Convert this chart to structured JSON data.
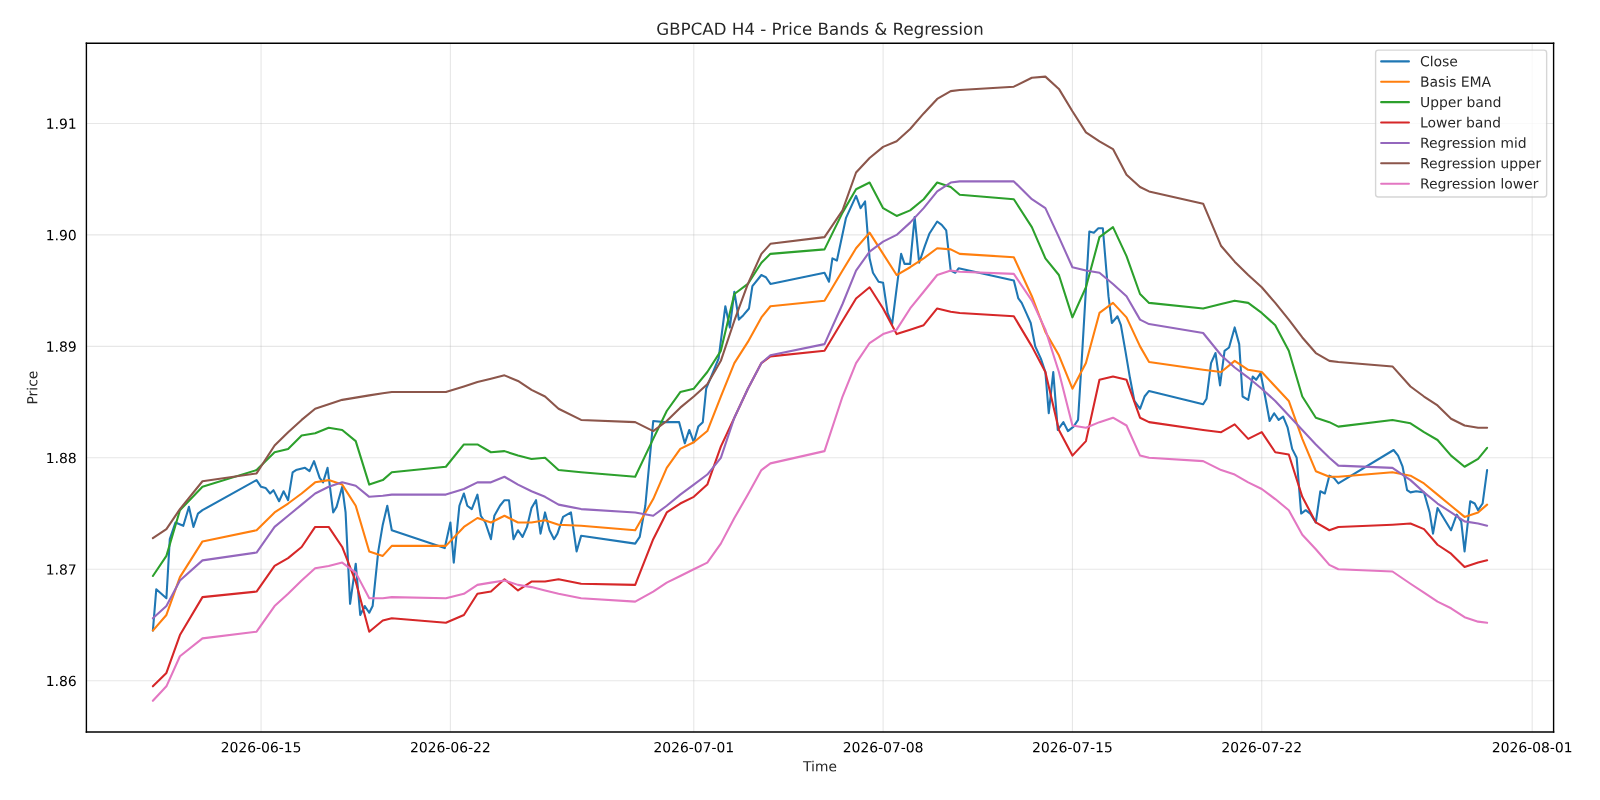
{
  "chart_data": {
    "type": "line",
    "title": "GBPCAD H4 - Price Bands & Regression",
    "xlabel": "Time",
    "ylabel": "Price",
    "xlim": [
      "2026-06-08T13:00",
      "2026-08-01T19:00"
    ],
    "xticks": [
      "2026-06-15",
      "2026-06-22",
      "2026-07-01",
      "2026-07-08",
      "2026-07-15",
      "2026-07-22",
      "2026-08-01"
    ],
    "ylim": [
      1.8554,
      1.9172
    ],
    "yticks": [
      {
        "value": 1.86,
        "label": "1.86"
      },
      {
        "value": 1.87,
        "label": "1.87"
      },
      {
        "value": 1.88,
        "label": "1.88"
      },
      {
        "value": 1.89,
        "label": "1.89"
      },
      {
        "value": 1.9,
        "label": "1.90"
      },
      {
        "value": 1.91,
        "label": "1.91"
      }
    ],
    "grid": true,
    "legend": "top right",
    "line_style": "solid",
    "marker": "none",
    "x": [
      "2026-06-11T00:00",
      "2026-06-11T12:00",
      "2026-06-12T00:00",
      "2026-06-12T20:00",
      "2026-06-14T20:00",
      "2026-06-15T12:00",
      "2026-06-16T00:00",
      "2026-06-16T12:00",
      "2026-06-17T00:00",
      "2026-06-17T12:00",
      "2026-06-18T00:00",
      "2026-06-18T12:00",
      "2026-06-19T00:00",
      "2026-06-19T12:00",
      "2026-06-19T20:00",
      "2026-06-21T20:00",
      "2026-06-22T12:00",
      "2026-06-23T00:00",
      "2026-06-23T12:00",
      "2026-06-24T00:00",
      "2026-06-24T12:00",
      "2026-06-25T00:00",
      "2026-06-25T12:00",
      "2026-06-26T00:00",
      "2026-06-26T20:00",
      "2026-06-28T20:00",
      "2026-06-29T12:00",
      "2026-06-30T00:00",
      "2026-06-30T12:00",
      "2026-07-01T00:00",
      "2026-07-01T12:00",
      "2026-07-02T00:00",
      "2026-07-02T12:00",
      "2026-07-03T00:00",
      "2026-07-03T12:00",
      "2026-07-03T20:00",
      "2026-07-05T20:00",
      "2026-07-06T12:00",
      "2026-07-07T00:00",
      "2026-07-07T12:00",
      "2026-07-08T00:00",
      "2026-07-08T12:00",
      "2026-07-09T00:00",
      "2026-07-09T12:00",
      "2026-07-10T00:00",
      "2026-07-10T12:00",
      "2026-07-10T20:00",
      "2026-07-12T20:00",
      "2026-07-13T12:00",
      "2026-07-14T00:00",
      "2026-07-14T12:00",
      "2026-07-15T00:00",
      "2026-07-15T12:00",
      "2026-07-16T00:00",
      "2026-07-16T12:00",
      "2026-07-17T00:00",
      "2026-07-17T12:00",
      "2026-07-17T20:00",
      "2026-07-19T20:00",
      "2026-07-20T12:00",
      "2026-07-21T00:00",
      "2026-07-21T12:00",
      "2026-07-22T00:00",
      "2026-07-22T12:00",
      "2026-07-23T00:00",
      "2026-07-23T12:00",
      "2026-07-24T00:00",
      "2026-07-24T12:00",
      "2026-07-24T20:00",
      "2026-07-26T20:00",
      "2026-07-27T12:00",
      "2026-07-28T00:00",
      "2026-07-28T12:00",
      "2026-07-29T00:00",
      "2026-07-29T12:00",
      "2026-07-30T00:00",
      "2026-07-30T08:00"
    ],
    "series": [
      {
        "name": "Close",
        "color": "#1f77b4",
        "x": [
          "2026-06-11T00:00",
          "2026-06-11T03:00",
          "2026-06-11T12:00",
          "2026-06-11T15:00",
          "2026-06-11T20:00",
          "2026-06-12T03:00",
          "2026-06-12T08:00",
          "2026-06-12T12:00",
          "2026-06-12T16:00",
          "2026-06-12T20:00",
          "2026-06-14T20:00",
          "2026-06-15T00:00",
          "2026-06-15T04:00",
          "2026-06-15T08:00",
          "2026-06-15T11:00",
          "2026-06-15T16:00",
          "2026-06-15T20:00",
          "2026-06-16T00:00",
          "2026-06-16T04:00",
          "2026-06-16T07:00",
          "2026-06-16T15:00",
          "2026-06-16T19:00",
          "2026-06-16T23:00",
          "2026-06-17T04:00",
          "2026-06-17T07:00",
          "2026-06-17T11:00",
          "2026-06-17T16:00",
          "2026-06-17T19:00",
          "2026-06-18T00:00",
          "2026-06-18T03:00",
          "2026-06-18T07:00",
          "2026-06-18T12:00",
          "2026-06-18T16:00",
          "2026-06-18T20:00",
          "2026-06-19T00:00",
          "2026-06-19T03:00",
          "2026-06-19T08:00",
          "2026-06-19T12:00",
          "2026-06-19T16:00",
          "2026-06-19T20:00",
          "2026-06-21T19:00",
          "2026-06-22T00:00",
          "2026-06-22T03:00",
          "2026-06-22T08:00",
          "2026-06-22T12:00",
          "2026-06-22T15:00",
          "2026-06-22T19:00",
          "2026-06-23T00:00",
          "2026-06-23T03:00",
          "2026-06-23T07:00",
          "2026-06-23T12:00",
          "2026-06-23T15:00",
          "2026-06-23T20:00",
          "2026-06-24T00:00",
          "2026-06-24T04:00",
          "2026-06-24T08:00",
          "2026-06-24T12:00",
          "2026-06-24T16:00",
          "2026-06-24T20:00",
          "2026-06-25T00:00",
          "2026-06-25T04:00",
          "2026-06-25T08:00",
          "2026-06-25T12:00",
          "2026-06-25T16:00",
          "2026-06-25T20:00",
          "2026-06-25T23:00",
          "2026-06-26T04:00",
          "2026-06-26T11:00",
          "2026-06-26T16:00",
          "2026-06-26T20:00",
          "2026-06-28T20:00",
          "2026-06-29T00:00",
          "2026-06-29T05:00",
          "2026-06-29T12:00",
          "2026-06-29T22:00",
          "2026-06-30T11:00",
          "2026-06-30T16:00",
          "2026-06-30T20:00",
          "2026-07-01T00:00",
          "2026-07-01T04:00",
          "2026-07-01T08:00",
          "2026-07-01T11:00",
          "2026-07-01T22:00",
          "2026-07-02T04:00",
          "2026-07-02T08:00",
          "2026-07-02T12:00",
          "2026-07-02T16:00",
          "2026-07-02T20:00",
          "2026-07-03T01:00",
          "2026-07-03T04:00",
          "2026-07-03T12:00",
          "2026-07-03T16:00",
          "2026-07-03T20:00",
          "2026-07-05T20:00",
          "2026-07-06T00:00",
          "2026-07-06T03:00",
          "2026-07-06T07:00",
          "2026-07-06T15:00",
          "2026-07-07T00:00",
          "2026-07-07T04:00",
          "2026-07-07T08:00",
          "2026-07-07T12:00",
          "2026-07-07T15:00",
          "2026-07-07T20:00",
          "2026-07-08T00:00",
          "2026-07-08T04:00",
          "2026-07-08T08:00",
          "2026-07-08T12:00",
          "2026-07-08T16:00",
          "2026-07-08T19:00",
          "2026-07-09T00:00",
          "2026-07-09T04:00",
          "2026-07-09T08:00",
          "2026-07-09T13:00",
          "2026-07-09T17:00",
          "2026-07-10T00:00",
          "2026-07-10T04:00",
          "2026-07-10T08:00",
          "2026-07-10T12:00",
          "2026-07-10T16:00",
          "2026-07-10T19:00",
          "2026-07-12T20:00",
          "2026-07-13T00:00",
          "2026-07-13T03:00",
          "2026-07-13T07:00",
          "2026-07-13T11:00",
          "2026-07-13T15:00",
          "2026-07-13T20:00",
          "2026-07-14T00:00",
          "2026-07-14T03:00",
          "2026-07-14T07:00",
          "2026-07-14T11:00",
          "2026-07-14T16:00",
          "2026-07-14T20:00",
          "2026-07-15T01:00",
          "2026-07-15T05:00",
          "2026-07-15T09:00",
          "2026-07-15T15:00",
          "2026-07-15T19:00",
          "2026-07-15T23:00",
          "2026-07-16T03:00",
          "2026-07-16T08:00",
          "2026-07-16T11:00",
          "2026-07-16T16:00",
          "2026-07-16T19:00",
          "2026-07-16T23:00",
          "2026-07-17T03:00",
          "2026-07-17T07:00",
          "2026-07-17T12:00",
          "2026-07-17T16:00",
          "2026-07-17T20:00",
          "2026-07-19T20:00",
          "2026-07-19T23:00",
          "2026-07-20T03:00",
          "2026-07-20T07:00",
          "2026-07-20T11:00",
          "2026-07-20T15:00",
          "2026-07-20T19:00",
          "2026-07-21T00:00",
          "2026-07-21T04:00",
          "2026-07-21T07:00",
          "2026-07-21T12:00",
          "2026-07-21T16:00",
          "2026-07-21T19:00",
          "2026-07-21T23:00",
          "2026-07-22T03:00",
          "2026-07-22T07:00",
          "2026-07-22T11:00",
          "2026-07-22T15:00",
          "2026-07-22T19:00",
          "2026-07-22T23:00",
          "2026-07-23T03:00",
          "2026-07-23T07:00",
          "2026-07-23T11:00",
          "2026-07-23T15:00",
          "2026-07-23T19:00",
          "2026-07-24T00:00",
          "2026-07-24T04:00",
          "2026-07-24T08:00",
          "2026-07-24T12:00",
          "2026-07-24T16:00",
          "2026-07-24T20:00",
          "2026-07-26T21:00",
          "2026-07-27T01:00",
          "2026-07-27T05:00",
          "2026-07-27T09:00",
          "2026-07-27T12:00",
          "2026-07-27T17:00",
          "2026-07-28T00:00",
          "2026-07-28T05:00",
          "2026-07-28T08:00",
          "2026-07-28T12:00",
          "2026-07-29T00:00",
          "2026-07-29T05:00",
          "2026-07-29T09:00",
          "2026-07-29T12:00",
          "2026-07-29T17:00",
          "2026-07-29T21:00",
          "2026-07-30T00:00",
          "2026-07-30T04:00",
          "2026-07-30T08:00"
        ],
        "values": [
          1.8645,
          1.8682,
          1.8674,
          1.8727,
          1.8742,
          1.8739,
          1.8756,
          1.8738,
          1.875,
          1.8753,
          1.878,
          1.8774,
          1.8773,
          1.8768,
          1.8771,
          1.8761,
          1.877,
          1.8762,
          1.8787,
          1.8789,
          1.8791,
          1.8788,
          1.8797,
          1.8782,
          1.8778,
          1.8791,
          1.8751,
          1.8756,
          1.8774,
          1.8751,
          1.8669,
          1.8705,
          1.8659,
          1.8667,
          1.8661,
          1.8667,
          1.8716,
          1.874,
          1.8757,
          1.8735,
          1.8719,
          1.8742,
          1.8706,
          1.8757,
          1.8768,
          1.8757,
          1.8754,
          1.8767,
          1.8748,
          1.8742,
          1.8727,
          1.8748,
          1.8757,
          1.8762,
          1.8762,
          1.8727,
          1.8735,
          1.8729,
          1.8738,
          1.8755,
          1.8762,
          1.8732,
          1.8751,
          1.8735,
          1.8727,
          1.8732,
          1.8747,
          1.8751,
          1.8716,
          1.873,
          1.8723,
          1.8729,
          1.8757,
          1.8833,
          1.8832,
          1.8832,
          1.8813,
          1.8825,
          1.8814,
          1.8828,
          1.8832,
          1.8862,
          1.8889,
          1.8936,
          1.8917,
          1.8949,
          1.8924,
          1.8928,
          1.8934,
          1.8954,
          1.8964,
          1.8962,
          1.8956,
          1.8966,
          1.8958,
          1.8979,
          1.8977,
          1.9015,
          1.9035,
          1.9024,
          1.903,
          1.8979,
          1.8966,
          1.8958,
          1.8957,
          1.893,
          1.892,
          1.8952,
          1.8983,
          1.8974,
          1.8974,
          1.9016,
          1.8975,
          1.899,
          1.9001,
          1.9012,
          1.9009,
          1.9004,
          1.8968,
          1.8966,
          1.897,
          1.8959,
          1.8943,
          1.8939,
          1.893,
          1.8921,
          1.89,
          1.8889,
          1.8877,
          1.884,
          1.8877,
          1.8825,
          1.8832,
          1.8824,
          1.8828,
          1.8834,
          1.89,
          1.9003,
          1.9002,
          1.9006,
          1.9006,
          1.8945,
          1.8921,
          1.8927,
          1.8919,
          1.8896,
          1.8872,
          1.8851,
          1.8844,
          1.8855,
          1.886,
          1.8848,
          1.8853,
          1.8885,
          1.8894,
          1.8865,
          1.8896,
          1.8899,
          1.8917,
          1.8902,
          1.8855,
          1.8852,
          1.8873,
          1.887,
          1.8876,
          1.8855,
          1.8833,
          1.884,
          1.8834,
          1.8837,
          1.8827,
          1.8808,
          1.88,
          1.875,
          1.8753,
          1.875,
          1.8742,
          1.877,
          1.8768,
          1.8784,
          1.8782,
          1.8777,
          1.8807,
          1.8802,
          1.8792,
          1.8771,
          1.8769,
          1.877,
          1.8769,
          1.8751,
          1.8732,
          1.8755,
          1.8735,
          1.8749,
          1.8743,
          1.8716,
          1.8761,
          1.8759,
          1.8753,
          1.8759,
          1.8789
        ]
      },
      {
        "name": "Basis EMA",
        "color": "#ff7f0e",
        "values": [
          1.8645,
          1.8659,
          1.8693,
          1.8725,
          1.8735,
          1.8751,
          1.8759,
          1.8768,
          1.8778,
          1.878,
          1.8776,
          1.8757,
          1.8716,
          1.8712,
          1.8721,
          1.8721,
          1.8738,
          1.8746,
          1.8742,
          1.8748,
          1.8742,
          1.8742,
          1.8744,
          1.874,
          1.8739,
          1.8735,
          1.8763,
          1.8791,
          1.8808,
          1.8814,
          1.8824,
          1.8855,
          1.8885,
          1.8904,
          1.8926,
          1.8936,
          1.8941,
          1.8968,
          1.8988,
          1.9002,
          1.8983,
          1.8964,
          1.8971,
          1.8979,
          1.8988,
          1.8987,
          1.8983,
          1.898,
          1.8945,
          1.8913,
          1.8892,
          1.8862,
          1.8885,
          1.893,
          1.8939,
          1.8926,
          1.89,
          1.8886,
          1.8879,
          1.8877,
          1.8887,
          1.8879,
          1.8877,
          1.8864,
          1.8851,
          1.8817,
          1.8788,
          1.8783,
          1.8783,
          1.8787,
          1.8784,
          1.8777,
          1.8767,
          1.8757,
          1.8747,
          1.8751,
          1.8758
        ]
      },
      {
        "name": "Upper band",
        "color": "#2ca02c",
        "values": [
          1.8694,
          1.8712,
          1.8753,
          1.8774,
          1.8789,
          1.8805,
          1.8808,
          1.882,
          1.8822,
          1.8827,
          1.8825,
          1.8815,
          1.8776,
          1.878,
          1.8787,
          1.8792,
          1.8812,
          1.8812,
          1.8805,
          1.8806,
          1.8802,
          1.8799,
          1.88,
          1.8789,
          1.8787,
          1.8783,
          1.8817,
          1.8842,
          1.8859,
          1.8862,
          1.8877,
          1.8896,
          1.8947,
          1.8956,
          1.8975,
          1.8983,
          1.8987,
          1.902,
          1.9041,
          1.9047,
          1.9024,
          1.9017,
          1.9022,
          1.9032,
          1.9047,
          1.9043,
          1.9036,
          1.9032,
          1.9007,
          1.8979,
          1.8964,
          1.8926,
          1.8953,
          1.8998,
          1.9007,
          1.8981,
          1.8947,
          1.8939,
          1.8934,
          1.8938,
          1.8941,
          1.8939,
          1.893,
          1.8919,
          1.8896,
          1.8855,
          1.8836,
          1.8832,
          1.8828,
          1.8834,
          1.8831,
          1.8823,
          1.8816,
          1.8802,
          1.8792,
          1.8799,
          1.8809
        ]
      },
      {
        "name": "Lower band",
        "color": "#d62728",
        "values": [
          1.8595,
          1.8607,
          1.8641,
          1.8675,
          1.868,
          1.8703,
          1.871,
          1.872,
          1.8738,
          1.8738,
          1.872,
          1.8689,
          1.8644,
          1.8654,
          1.8656,
          1.8652,
          1.8659,
          1.8678,
          1.868,
          1.8691,
          1.8681,
          1.8689,
          1.8689,
          1.8691,
          1.8687,
          1.8686,
          1.8727,
          1.8751,
          1.8759,
          1.8765,
          1.8776,
          1.881,
          1.8836,
          1.8862,
          1.8885,
          1.8891,
          1.8896,
          1.8923,
          1.8943,
          1.8953,
          1.8934,
          1.8911,
          1.8915,
          1.8919,
          1.8934,
          1.8931,
          1.893,
          1.8927,
          1.89,
          1.8877,
          1.8825,
          1.8802,
          1.8815,
          1.887,
          1.8873,
          1.887,
          1.8836,
          1.8832,
          1.8825,
          1.8823,
          1.883,
          1.8817,
          1.8823,
          1.8805,
          1.8803,
          1.8765,
          1.8742,
          1.8735,
          1.8738,
          1.874,
          1.8741,
          1.8736,
          1.8722,
          1.8714,
          1.8702,
          1.8706,
          1.8708
        ]
      },
      {
        "name": "Regression mid",
        "color": "#9467bd",
        "values": [
          1.8656,
          1.8667,
          1.869,
          1.8708,
          1.8715,
          1.8738,
          1.8748,
          1.8758,
          1.8768,
          1.8774,
          1.8778,
          1.8775,
          1.8765,
          1.8766,
          1.8767,
          1.8767,
          1.8772,
          1.8778,
          1.8778,
          1.8783,
          1.8776,
          1.877,
          1.8765,
          1.8758,
          1.8754,
          1.8751,
          1.8748,
          1.8757,
          1.8767,
          1.8776,
          1.8785,
          1.88,
          1.8836,
          1.8862,
          1.8885,
          1.8892,
          1.8902,
          1.8938,
          1.8968,
          1.8985,
          1.8994,
          1.9,
          1.9011,
          1.9024,
          1.9039,
          1.9047,
          1.9048,
          1.9048,
          1.9032,
          1.9024,
          1.8998,
          1.8971,
          1.8968,
          1.8966,
          1.8956,
          1.8945,
          1.8924,
          1.892,
          1.8912,
          1.8892,
          1.8881,
          1.8872,
          1.8862,
          1.8851,
          1.8838,
          1.8825,
          1.8812,
          1.88,
          1.8793,
          1.8791,
          1.878,
          1.8769,
          1.8759,
          1.8751,
          1.8743,
          1.8741,
          1.8739
        ]
      },
      {
        "name": "Regression upper",
        "color": "#8c564b",
        "values": [
          1.8728,
          1.8736,
          1.8754,
          1.8779,
          1.8786,
          1.8811,
          1.8823,
          1.8834,
          1.8844,
          1.8848,
          1.8852,
          1.8854,
          1.8856,
          1.8858,
          1.8859,
          1.8859,
          1.8864,
          1.8868,
          1.8871,
          1.8874,
          1.8869,
          1.8861,
          1.8855,
          1.8844,
          1.8834,
          1.8832,
          1.8824,
          1.8833,
          1.8845,
          1.8855,
          1.8866,
          1.8887,
          1.8923,
          1.8956,
          1.8983,
          1.8992,
          1.8998,
          1.9022,
          1.9056,
          1.9069,
          1.9079,
          1.9084,
          1.9095,
          1.9109,
          1.9122,
          1.9129,
          1.913,
          1.9133,
          1.9141,
          1.9142,
          1.9131,
          1.9111,
          1.9092,
          1.9084,
          1.9077,
          1.9054,
          1.9043,
          1.9039,
          1.9028,
          1.899,
          1.8976,
          1.8964,
          1.8953,
          1.8939,
          1.8924,
          1.8908,
          1.8894,
          1.8887,
          1.8886,
          1.8882,
          1.8864,
          1.8855,
          1.8847,
          1.8835,
          1.8829,
          1.8827,
          1.8827
        ]
      },
      {
        "name": "Regression lower",
        "color": "#e377c2",
        "values": [
          1.8582,
          1.8595,
          1.8622,
          1.8638,
          1.8644,
          1.8667,
          1.8678,
          1.869,
          1.8701,
          1.8703,
          1.8706,
          1.8697,
          1.8674,
          1.8674,
          1.8675,
          1.8674,
          1.8678,
          1.8686,
          1.8688,
          1.869,
          1.8686,
          1.8684,
          1.8681,
          1.8678,
          1.8674,
          1.8671,
          1.868,
          1.8688,
          1.8694,
          1.87,
          1.8706,
          1.8723,
          1.8746,
          1.8767,
          1.8789,
          1.8795,
          1.8806,
          1.8855,
          1.8885,
          1.8903,
          1.8911,
          1.8915,
          1.8934,
          1.8949,
          1.8964,
          1.8968,
          1.8967,
          1.8965,
          1.8941,
          1.8915,
          1.8877,
          1.8829,
          1.8827,
          1.8832,
          1.8836,
          1.8829,
          1.8802,
          1.88,
          1.8797,
          1.8789,
          1.8785,
          1.8778,
          1.8772,
          1.8763,
          1.8753,
          1.8731,
          1.8718,
          1.8704,
          1.87,
          1.8698,
          1.8687,
          1.8679,
          1.8671,
          1.8665,
          1.8657,
          1.8653,
          1.8652
        ]
      }
    ]
  }
}
